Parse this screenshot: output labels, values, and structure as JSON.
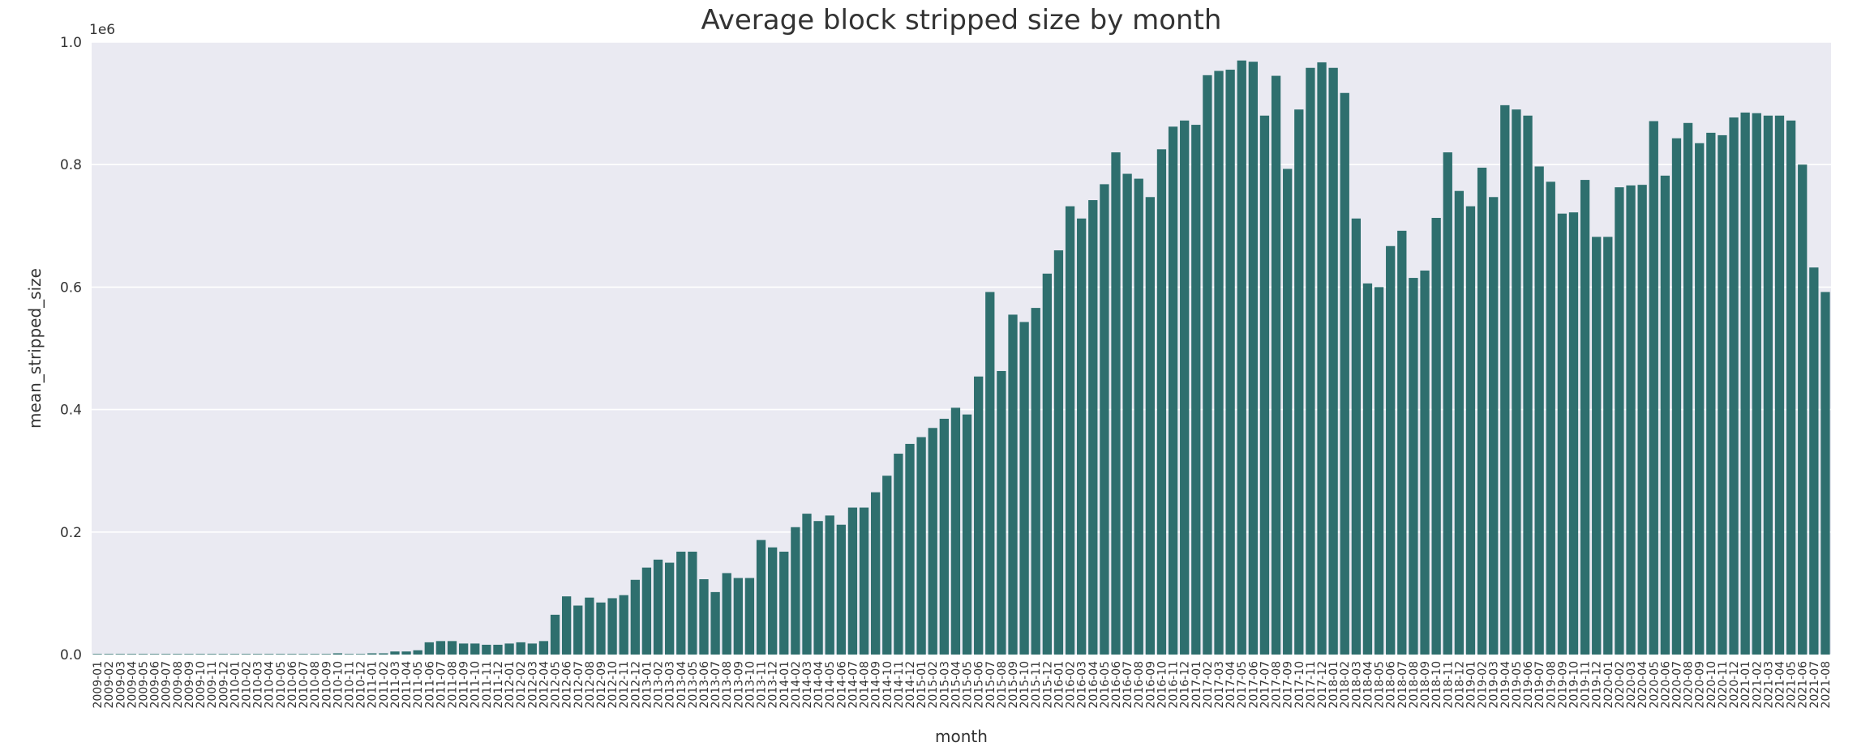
{
  "chart_data": {
    "type": "bar",
    "title": "Average block stripped size by month",
    "xlabel": "month",
    "ylabel": "mean_stripped_size",
    "y_offset_label": "1e6",
    "ylim": [
      0,
      1.0
    ],
    "y_unit": "1e6",
    "y_ticks": [
      "0.0",
      "0.2",
      "0.4",
      "0.6",
      "0.8",
      "1.0"
    ],
    "grid": true,
    "legend": "none",
    "colors": {
      "bar": "#2E6F6E",
      "plot_background": "#EAEAF2",
      "grid": "#FFFFFF",
      "text": "#333333"
    },
    "categories": [
      "2009-01",
      "2009-02",
      "2009-03",
      "2009-04",
      "2009-05",
      "2009-06",
      "2009-07",
      "2009-08",
      "2009-09",
      "2009-10",
      "2009-11",
      "2009-12",
      "2010-01",
      "2010-02",
      "2010-03",
      "2010-04",
      "2010-05",
      "2010-06",
      "2010-07",
      "2010-08",
      "2010-09",
      "2010-10",
      "2010-11",
      "2010-12",
      "2011-01",
      "2011-02",
      "2011-03",
      "2011-04",
      "2011-05",
      "2011-06",
      "2011-07",
      "2011-08",
      "2011-09",
      "2011-10",
      "2011-11",
      "2011-12",
      "2012-01",
      "2012-02",
      "2012-03",
      "2012-04",
      "2012-05",
      "2012-06",
      "2012-07",
      "2012-08",
      "2012-09",
      "2012-10",
      "2012-11",
      "2012-12",
      "2013-01",
      "2013-02",
      "2013-03",
      "2013-04",
      "2013-05",
      "2013-06",
      "2013-07",
      "2013-08",
      "2013-09",
      "2013-10",
      "2013-11",
      "2013-12",
      "2014-01",
      "2014-02",
      "2014-03",
      "2014-04",
      "2014-05",
      "2014-06",
      "2014-07",
      "2014-08",
      "2014-09",
      "2014-10",
      "2014-11",
      "2014-12",
      "2015-01",
      "2015-02",
      "2015-03",
      "2015-04",
      "2015-05",
      "2015-06",
      "2015-07",
      "2015-08",
      "2015-09",
      "2015-10",
      "2015-11",
      "2015-12",
      "2016-01",
      "2016-02",
      "2016-03",
      "2016-04",
      "2016-05",
      "2016-06",
      "2016-07",
      "2016-08",
      "2016-09",
      "2016-10",
      "2016-11",
      "2016-12",
      "2017-01",
      "2017-02",
      "2017-03",
      "2017-04",
      "2017-05",
      "2017-06",
      "2017-07",
      "2017-08",
      "2017-09",
      "2017-10",
      "2017-11",
      "2017-12",
      "2018-01",
      "2018-02",
      "2018-03",
      "2018-04",
      "2018-05",
      "2018-06",
      "2018-07",
      "2018-08",
      "2018-09",
      "2018-10",
      "2018-11",
      "2018-12",
      "2019-01",
      "2019-02",
      "2019-03",
      "2019-04",
      "2019-05",
      "2019-06",
      "2019-07",
      "2019-08",
      "2019-09",
      "2019-10",
      "2019-11",
      "2019-12",
      "2020-01",
      "2020-02",
      "2020-03",
      "2020-04",
      "2020-05",
      "2020-06",
      "2020-07",
      "2020-08",
      "2020-09",
      "2020-10",
      "2020-11",
      "2020-12",
      "2021-01",
      "2021-02",
      "2021-03",
      "2021-04",
      "2021-05",
      "2021-06",
      "2021-07",
      "2021-08"
    ],
    "values": [
      0.001,
      0.001,
      0.001,
      0.001,
      0.001,
      0.001,
      0.001,
      0.001,
      0.001,
      0.001,
      0.001,
      0.001,
      0.001,
      0.001,
      0.001,
      0.001,
      0.001,
      0.001,
      0.001,
      0.001,
      0.001,
      0.002,
      0.001,
      0.001,
      0.002,
      0.002,
      0.005,
      0.005,
      0.007,
      0.02,
      0.022,
      0.022,
      0.018,
      0.018,
      0.016,
      0.016,
      0.018,
      0.02,
      0.018,
      0.022,
      0.065,
      0.095,
      0.08,
      0.093,
      0.085,
      0.092,
      0.097,
      0.122,
      0.142,
      0.155,
      0.15,
      0.168,
      0.168,
      0.123,
      0.102,
      0.133,
      0.125,
      0.125,
      0.187,
      0.175,
      0.168,
      0.208,
      0.23,
      0.218,
      0.227,
      0.212,
      0.24,
      0.24,
      0.265,
      0.292,
      0.328,
      0.344,
      0.355,
      0.37,
      0.385,
      0.403,
      0.392,
      0.454,
      0.592,
      0.463,
      0.555,
      0.543,
      0.566,
      0.622,
      0.66,
      0.732,
      0.712,
      0.742,
      0.768,
      0.82,
      0.785,
      0.777,
      0.747,
      0.825,
      0.862,
      0.872,
      0.865,
      0.946,
      0.953,
      0.955,
      0.97,
      0.968,
      0.88,
      0.945,
      0.793,
      0.89,
      0.958,
      0.967,
      0.958,
      0.917,
      0.712,
      0.606,
      0.6,
      0.667,
      0.692,
      0.615,
      0.627,
      0.713,
      0.82,
      0.757,
      0.732,
      0.795,
      0.747,
      0.897,
      0.89,
      0.88,
      0.797,
      0.772,
      0.72,
      0.722,
      0.775,
      0.682,
      0.682,
      0.763,
      0.766,
      0.767,
      0.871,
      0.782,
      0.843,
      0.868,
      0.835,
      0.852,
      0.848,
      0.877,
      0.885,
      0.884,
      0.88,
      0.88,
      0.872,
      0.8,
      0.632,
      0.592
    ]
  }
}
